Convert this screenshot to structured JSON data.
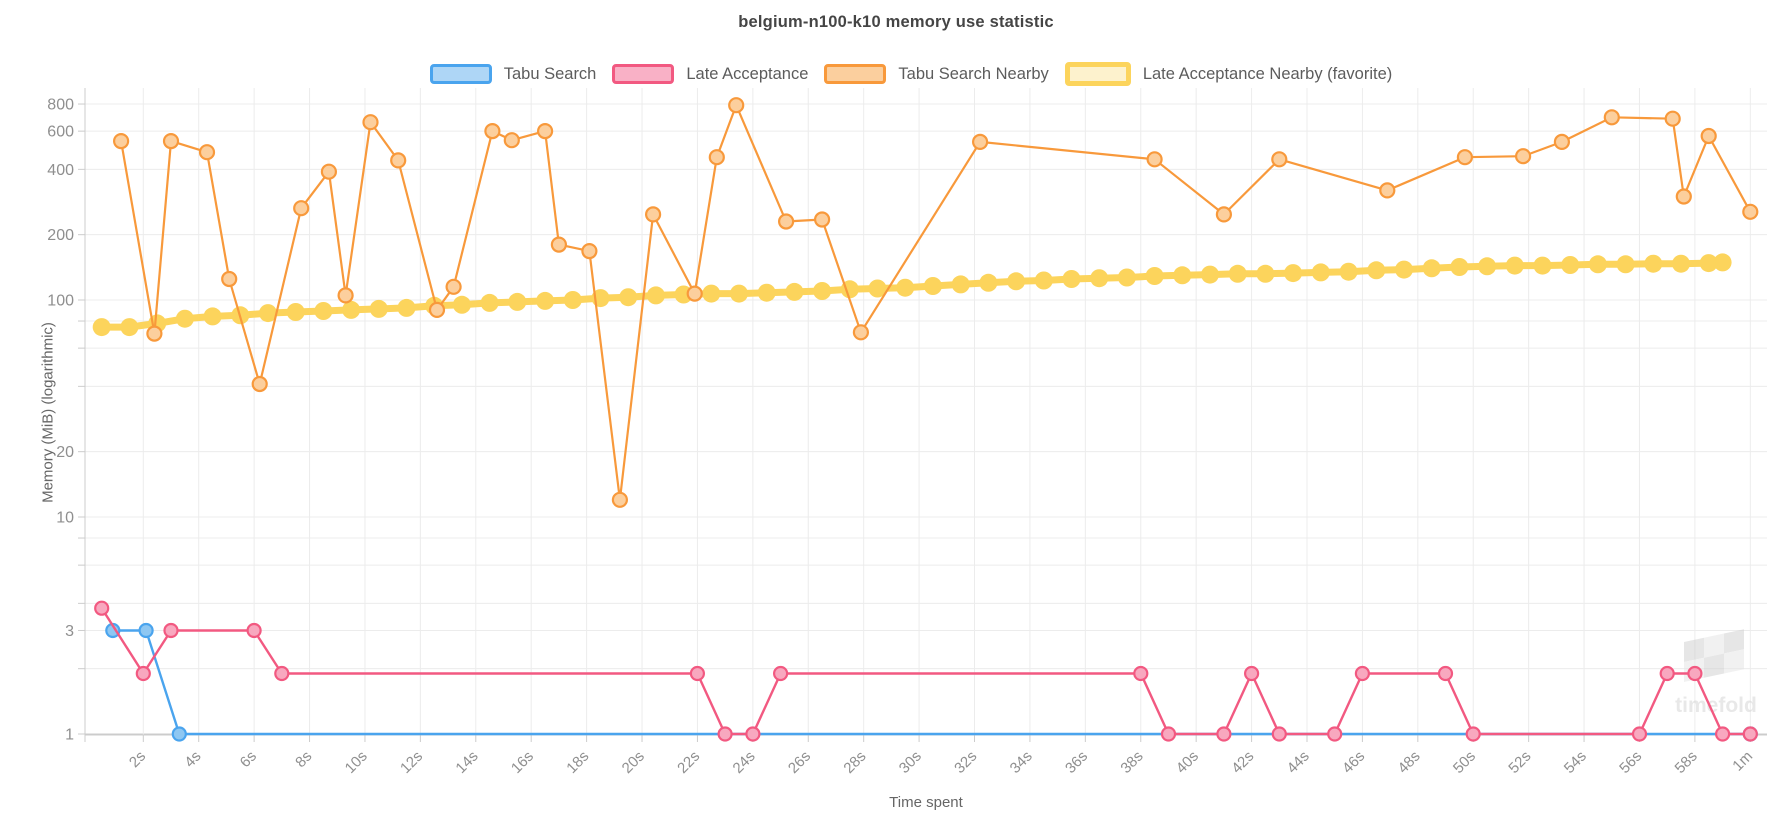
{
  "title": "belgium-n100-k10 memory use statistic",
  "watermark": {
    "text": "timefold"
  },
  "axes": {
    "x_label": "Time spent",
    "y_label": "Memory (MiB) (logarithmic)",
    "x_tick_labels": [
      "2s",
      "4s",
      "6s",
      "8s",
      "10s",
      "12s",
      "14s",
      "16s",
      "18s",
      "20s",
      "22s",
      "24s",
      "26s",
      "28s",
      "30s",
      "32s",
      "34s",
      "36s",
      "38s",
      "40s",
      "42s",
      "44s",
      "46s",
      "48s",
      "50s",
      "52s",
      "54s",
      "56s",
      "58s",
      "1m"
    ],
    "y_tick_labels": [
      "800",
      "600",
      "400",
      "200",
      "100",
      "20",
      "10",
      "3",
      "1"
    ]
  },
  "legend": {
    "items": [
      {
        "label": "Tabu Search",
        "stroke": "#4aa4ee",
        "fill": "#aed6f6",
        "thick": false
      },
      {
        "label": "Late Acceptance",
        "stroke": "#f25981",
        "fill": "#f9b1c6",
        "thick": false
      },
      {
        "label": "Tabu Search Nearby",
        "stroke": "#f8993b",
        "fill": "#fbcf9e",
        "thick": false
      },
      {
        "label": "Late Acceptance Nearby (favorite)",
        "stroke": "#fcd45c",
        "fill": "#fdf2cd",
        "thick": true
      }
    ]
  },
  "colors": {
    "grid": "#ececec",
    "axis": "#cccccc",
    "tick_text": "#8f8f8f",
    "title_text": "#454545",
    "watermark": "#d6d6d6"
  },
  "chart_data": {
    "type": "line",
    "title": "belgium-n100-k10 memory use statistic",
    "xlabel": "Time spent",
    "ylabel": "Memory (MiB) (logarithmic)",
    "x_unit": "seconds",
    "y_scale": "logarithmic",
    "ylim": [
      1,
      950
    ],
    "xlim": [
      0,
      60.6
    ],
    "grid": true,
    "legend_position": "top",
    "x_ticks_seconds": [
      2,
      4,
      6,
      8,
      10,
      12,
      14,
      16,
      18,
      20,
      22,
      24,
      26,
      28,
      30,
      32,
      34,
      36,
      38,
      40,
      42,
      44,
      46,
      48,
      50,
      52,
      54,
      56,
      58,
      60
    ],
    "y_gridlines": [
      800,
      600,
      400,
      200,
      100,
      80,
      60,
      40,
      20,
      10,
      8,
      6,
      4,
      3,
      2,
      1
    ],
    "y_labeled_ticks": [
      800,
      600,
      400,
      200,
      100,
      20,
      10,
      3,
      1
    ],
    "series": [
      {
        "name": "Tabu Search",
        "color": "#4aa4ee",
        "marker_fill": "#8ec7f2",
        "points": [
          [
            0.9,
            3
          ],
          [
            2.1,
            3
          ],
          [
            3.3,
            1
          ],
          [
            60,
            1
          ]
        ]
      },
      {
        "name": "Late Acceptance",
        "color": "#f25981",
        "marker_fill": "#f8a8bf",
        "points": [
          [
            0.5,
            3.8
          ],
          [
            2,
            1.9
          ],
          [
            3,
            3
          ],
          [
            6,
            3
          ],
          [
            7,
            1.9
          ],
          [
            22,
            1.9
          ],
          [
            23,
            1
          ],
          [
            24,
            1
          ],
          [
            25,
            1.9
          ],
          [
            38,
            1.9
          ],
          [
            39,
            1
          ],
          [
            41,
            1
          ],
          [
            42,
            1.9
          ],
          [
            43,
            1
          ],
          [
            45,
            1
          ],
          [
            46,
            1.9
          ],
          [
            49,
            1.9
          ],
          [
            50,
            1
          ],
          [
            56,
            1
          ],
          [
            57,
            1.9
          ],
          [
            58,
            1.9
          ],
          [
            59,
            1
          ],
          [
            60,
            1
          ]
        ]
      },
      {
        "name": "Tabu Search Nearby",
        "color": "#f8993b",
        "marker_fill": "#fccf9d",
        "points": [
          [
            1.2,
            540
          ],
          [
            2.4,
            70
          ],
          [
            3,
            540
          ],
          [
            4.3,
            480
          ],
          [
            5.1,
            125
          ],
          [
            6.2,
            41
          ],
          [
            7.7,
            265
          ],
          [
            8.7,
            390
          ],
          [
            9.3,
            105
          ],
          [
            10.2,
            660
          ],
          [
            11.2,
            440
          ],
          [
            12.6,
            90
          ],
          [
            13.2,
            115
          ],
          [
            14.6,
            600
          ],
          [
            15.3,
            545
          ],
          [
            16.5,
            600
          ],
          [
            17,
            180
          ],
          [
            18.1,
            168
          ],
          [
            19.2,
            12
          ],
          [
            20.4,
            248
          ],
          [
            21.9,
            107
          ],
          [
            22.7,
            455
          ],
          [
            23.4,
            790
          ],
          [
            25.2,
            230
          ],
          [
            26.5,
            235
          ],
          [
            27.9,
            71
          ],
          [
            32.2,
            535
          ],
          [
            38.5,
            445
          ],
          [
            41,
            248
          ],
          [
            43,
            445
          ],
          [
            46.9,
            320
          ],
          [
            49.7,
            455
          ],
          [
            51.8,
            460
          ],
          [
            53.2,
            535
          ],
          [
            55,
            695
          ],
          [
            57.2,
            685
          ],
          [
            57.6,
            300
          ],
          [
            58.5,
            570
          ],
          [
            60,
            255
          ]
        ]
      },
      {
        "name": "Late Acceptance Nearby (favorite)",
        "color": "#fcd45c",
        "marker_fill": "#fcd45c",
        "points": [
          [
            0.5,
            75
          ],
          [
            1.5,
            75
          ],
          [
            2.5,
            78
          ],
          [
            3.5,
            82
          ],
          [
            4.5,
            84
          ],
          [
            5.5,
            85
          ],
          [
            6.5,
            87
          ],
          [
            7.5,
            88
          ],
          [
            8.5,
            89
          ],
          [
            9.5,
            90
          ],
          [
            10.5,
            91
          ],
          [
            11.5,
            92
          ],
          [
            12.5,
            94
          ],
          [
            13.5,
            95
          ],
          [
            14.5,
            97
          ],
          [
            15.5,
            98
          ],
          [
            16.5,
            99
          ],
          [
            17.5,
            100
          ],
          [
            18.5,
            102
          ],
          [
            19.5,
            103
          ],
          [
            20.5,
            105
          ],
          [
            21.5,
            106
          ],
          [
            22.5,
            107
          ],
          [
            23.5,
            107
          ],
          [
            24.5,
            108
          ],
          [
            25.5,
            109
          ],
          [
            26.5,
            110
          ],
          [
            27.5,
            112
          ],
          [
            28.5,
            113
          ],
          [
            29.5,
            114
          ],
          [
            30.5,
            116
          ],
          [
            31.5,
            118
          ],
          [
            32.5,
            120
          ],
          [
            33.5,
            122
          ],
          [
            34.5,
            123
          ],
          [
            35.5,
            125
          ],
          [
            36.5,
            126
          ],
          [
            37.5,
            127
          ],
          [
            38.5,
            129
          ],
          [
            39.5,
            130
          ],
          [
            40.5,
            131
          ],
          [
            41.5,
            132
          ],
          [
            42.5,
            132
          ],
          [
            43.5,
            133
          ],
          [
            44.5,
            134
          ],
          [
            45.5,
            135
          ],
          [
            46.5,
            137
          ],
          [
            47.5,
            138
          ],
          [
            48.5,
            140
          ],
          [
            49.5,
            142
          ],
          [
            50.5,
            143
          ],
          [
            51.5,
            144
          ],
          [
            52.5,
            144
          ],
          [
            53.5,
            145
          ],
          [
            54.5,
            146
          ],
          [
            55.5,
            146
          ],
          [
            56.5,
            147
          ],
          [
            57.5,
            147
          ],
          [
            58.5,
            148
          ],
          [
            59,
            149
          ]
        ]
      }
    ]
  }
}
